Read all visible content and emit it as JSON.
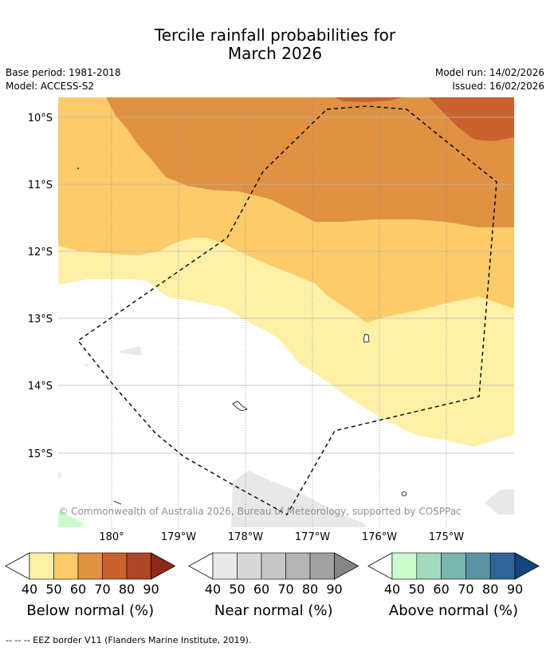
{
  "title_line1": "Tercile rainfall probabilities for",
  "title_line2": "March 2026",
  "meta": {
    "base_period": "Base period: 1981-2018",
    "model": "Model: ACCESS-S2",
    "model_run": "Model run: 14/02/2026",
    "issued": "Issued: 16/02/2026"
  },
  "map": {
    "lat_labels": [
      "10°S",
      "11°S",
      "12°S",
      "13°S",
      "14°S",
      "15°S"
    ],
    "lon_labels": [
      "180°",
      "179°W",
      "178°W",
      "177°W",
      "176°W",
      "175°W"
    ],
    "copyright": "© Commonwealth of Australia 2026, Bureau of Meteorology, supported by COSPPac"
  },
  "colorbars": [
    {
      "name": "Below normal (%)",
      "ticks": [
        "40",
        "50",
        "60",
        "70",
        "80",
        "90"
      ],
      "colors": [
        "#fff0a8",
        "#fdcb6a",
        "#e09142",
        "#ca622f",
        "#ab4726",
        "#8e2818"
      ]
    },
    {
      "name": "Near normal (%)",
      "ticks": [
        "40",
        "50",
        "60",
        "70",
        "80",
        "90"
      ],
      "colors": [
        "#e8e8e8",
        "#d7d7d7",
        "#c6c6c6",
        "#b5b5b5",
        "#a1a1a1",
        "#858585"
      ]
    },
    {
      "name": "Above normal (%)",
      "ticks": [
        "40",
        "50",
        "60",
        "70",
        "80",
        "90"
      ],
      "colors": [
        "#c9fccc",
        "#a3dabf",
        "#7ab5af",
        "#5993a2",
        "#306499",
        "#14457c"
      ]
    }
  ],
  "footnote": "--  --  -- EEZ border V11 (Flanders Marine Institute, 2019)."
}
